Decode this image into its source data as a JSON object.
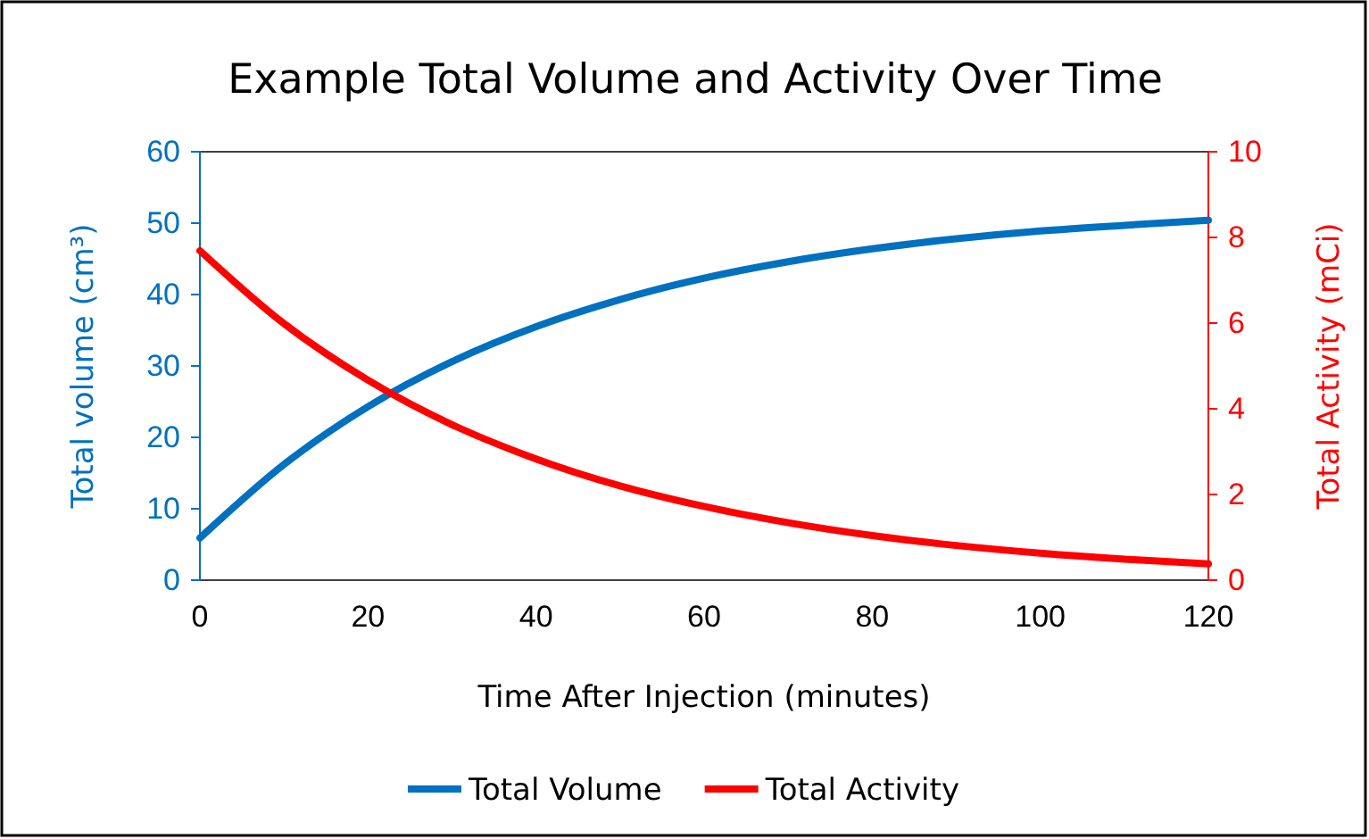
{
  "chart_data": {
    "type": "line",
    "title": "Example Total Volume and Activity Over Time",
    "xlabel": "Time After Injection (minutes)",
    "ylabel": "Total volume (cm³)",
    "y2label": "Total Activity (mCi)",
    "x": [
      0,
      10,
      20,
      30,
      40,
      50,
      60,
      70,
      80,
      90,
      100,
      110,
      120
    ],
    "series": [
      {
        "name": "Total Volume",
        "color": "#0070c0",
        "values": [
          5.9,
          16.2,
          24.3,
          30.6,
          35.5,
          39.3,
          42.3,
          44.6,
          46.4,
          47.8,
          48.9,
          49.7,
          50.4
        ]
      },
      {
        "name": "Total Activity",
        "color": "#ff0000",
        "axis": "y2",
        "values": [
          7.69,
          5.99,
          4.67,
          3.63,
          2.83,
          2.2,
          1.72,
          1.34,
          1.04,
          0.81,
          0.63,
          0.49,
          0.38
        ]
      }
    ],
    "xlim": [
      0,
      120
    ],
    "xticks": [
      0,
      20,
      40,
      60,
      80,
      100,
      120
    ],
    "ylim": [
      0,
      60
    ],
    "yticks": [
      0,
      10,
      20,
      30,
      40,
      50,
      60
    ],
    "y2lim": [
      0,
      10
    ],
    "y2ticks": [
      0,
      2,
      4,
      6,
      8,
      10
    ],
    "grid": false,
    "legend": "bottom",
    "marker": "none",
    "line_style": "solid"
  }
}
